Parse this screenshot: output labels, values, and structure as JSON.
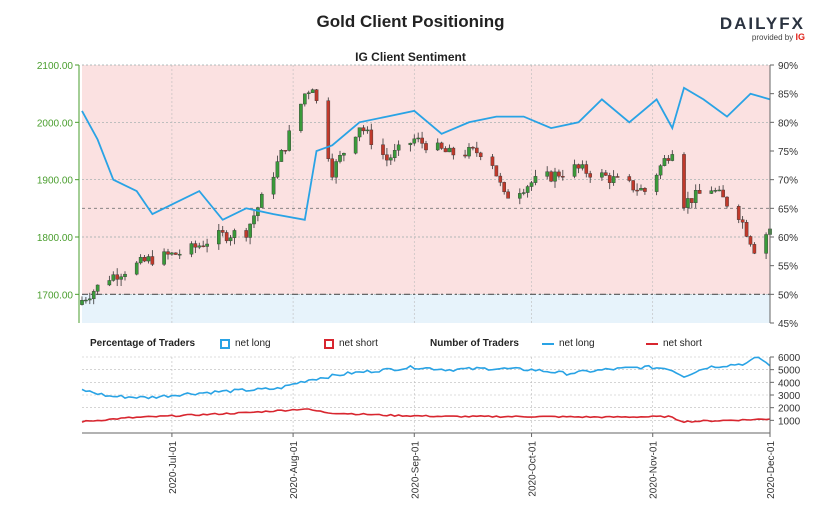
{
  "header": {
    "title": "Gold Client Positioning",
    "subtitle": "IG Client Sentiment",
    "brand_main": "DAILYFX",
    "brand_sub": "provided by",
    "brand_ig": "IG"
  },
  "legend": {
    "pct_label": "Percentage of Traders",
    "pct_long": "net long",
    "pct_short": "net short",
    "num_label": "Number of Traders",
    "num_long": "net long",
    "num_short": "net short"
  },
  "colors": {
    "long": "#29a3e5",
    "short": "#d8262f",
    "up_candle": "#3a9a3a",
    "down_candle": "#c0392b",
    "axis_green": "#4a9e2e",
    "zone_short": "#fbe1e1",
    "zone_long": "#e7f3fb"
  },
  "chart_data": [
    {
      "type": "candlestick",
      "title": "IG Client Sentiment",
      "x_ticks": [
        "2020-Jul-01",
        "2020-Aug-01",
        "2020-Sep-01",
        "2020-Oct-01",
        "2020-Nov-01",
        "2020-Dec-01"
      ],
      "x_range": [
        "2020-06-08",
        "2020-12-01"
      ],
      "y_ticks": [
        "1700.00",
        "1800.00",
        "1900.00",
        "2000.00",
        "2100.00"
      ],
      "ylim": [
        1650,
        2100
      ],
      "y2_ticks": [
        "45%",
        "50%",
        "55%",
        "60%",
        "65%",
        "70%",
        "75%",
        "80%",
        "85%",
        "90%"
      ],
      "y2lim": [
        45,
        90
      ],
      "reference_lines_pct": [
        50,
        65
      ],
      "grid": true,
      "gold_price_key_closes": [
        {
          "date": "2020-06-08",
          "close": 1690
        },
        {
          "date": "2020-06-15",
          "close": 1730
        },
        {
          "date": "2020-06-25",
          "close": 1760
        },
        {
          "date": "2020-07-05",
          "close": 1775
        },
        {
          "date": "2020-07-12",
          "close": 1800
        },
        {
          "date": "2020-07-20",
          "close": 1810
        },
        {
          "date": "2020-07-25",
          "close": 1880
        },
        {
          "date": "2020-07-30",
          "close": 1960
        },
        {
          "date": "2020-08-04",
          "close": 2050
        },
        {
          "date": "2020-08-06",
          "close": 2065
        },
        {
          "date": "2020-08-11",
          "close": 1915
        },
        {
          "date": "2020-08-18",
          "close": 1995
        },
        {
          "date": "2020-08-25",
          "close": 1935
        },
        {
          "date": "2020-09-01",
          "close": 1970
        },
        {
          "date": "2020-09-10",
          "close": 1945
        },
        {
          "date": "2020-09-20",
          "close": 1950
        },
        {
          "date": "2020-09-24",
          "close": 1870
        },
        {
          "date": "2020-10-01",
          "close": 1895
        },
        {
          "date": "2020-10-12",
          "close": 1920
        },
        {
          "date": "2020-10-20",
          "close": 1905
        },
        {
          "date": "2020-10-30",
          "close": 1880
        },
        {
          "date": "2020-11-06",
          "close": 1955
        },
        {
          "date": "2020-11-09",
          "close": 1860
        },
        {
          "date": "2020-11-16",
          "close": 1885
        },
        {
          "date": "2020-11-23",
          "close": 1840
        },
        {
          "date": "2020-11-27",
          "close": 1780
        },
        {
          "date": "2020-12-01",
          "close": 1815
        }
      ],
      "series": [
        {
          "name": "net long",
          "values_pct": [
            {
              "date": "2020-06-08",
              "y": 82
            },
            {
              "date": "2020-06-12",
              "y": 77
            },
            {
              "date": "2020-06-16",
              "y": 70
            },
            {
              "date": "2020-06-22",
              "y": 68
            },
            {
              "date": "2020-06-26",
              "y": 64
            },
            {
              "date": "2020-07-02",
              "y": 66
            },
            {
              "date": "2020-07-08",
              "y": 68
            },
            {
              "date": "2020-07-14",
              "y": 63
            },
            {
              "date": "2020-07-20",
              "y": 65
            },
            {
              "date": "2020-07-27",
              "y": 64
            },
            {
              "date": "2020-08-04",
              "y": 63
            },
            {
              "date": "2020-08-07",
              "y": 75
            },
            {
              "date": "2020-08-11",
              "y": 76
            },
            {
              "date": "2020-08-18",
              "y": 80
            },
            {
              "date": "2020-08-25",
              "y": 81
            },
            {
              "date": "2020-09-01",
              "y": 82
            },
            {
              "date": "2020-09-08",
              "y": 78
            },
            {
              "date": "2020-09-15",
              "y": 80
            },
            {
              "date": "2020-09-22",
              "y": 81
            },
            {
              "date": "2020-09-29",
              "y": 81
            },
            {
              "date": "2020-10-06",
              "y": 79
            },
            {
              "date": "2020-10-13",
              "y": 80
            },
            {
              "date": "2020-10-19",
              "y": 84
            },
            {
              "date": "2020-10-26",
              "y": 80
            },
            {
              "date": "2020-11-02",
              "y": 84
            },
            {
              "date": "2020-11-06",
              "y": 79
            },
            {
              "date": "2020-11-09",
              "y": 86
            },
            {
              "date": "2020-11-14",
              "y": 84
            },
            {
              "date": "2020-11-20",
              "y": 81
            },
            {
              "date": "2020-11-26",
              "y": 85
            },
            {
              "date": "2020-12-01",
              "y": 84
            }
          ]
        }
      ]
    },
    {
      "type": "line",
      "title": "Number of Traders",
      "x_ticks": [
        "2020-Jul-01",
        "2020-Aug-01",
        "2020-Sep-01",
        "2020-Oct-01",
        "2020-Nov-01",
        "2020-Dec-01"
      ],
      "y_ticks": [
        "1000",
        "2000",
        "3000",
        "4000",
        "5000",
        "6000"
      ],
      "ylim": [
        0,
        6000
      ],
      "series": [
        {
          "name": "net long",
          "values": [
            {
              "date": "2020-06-08",
              "y": 3400
            },
            {
              "date": "2020-06-15",
              "y": 2900
            },
            {
              "date": "2020-06-25",
              "y": 2800
            },
            {
              "date": "2020-07-05",
              "y": 3100
            },
            {
              "date": "2020-07-15",
              "y": 3300
            },
            {
              "date": "2020-07-28",
              "y": 3500
            },
            {
              "date": "2020-08-05",
              "y": 4200
            },
            {
              "date": "2020-08-15",
              "y": 4700
            },
            {
              "date": "2020-08-25",
              "y": 5000
            },
            {
              "date": "2020-09-01",
              "y": 5200
            },
            {
              "date": "2020-09-10",
              "y": 5000
            },
            {
              "date": "2020-09-20",
              "y": 5100
            },
            {
              "date": "2020-10-01",
              "y": 5000
            },
            {
              "date": "2020-10-10",
              "y": 4700
            },
            {
              "date": "2020-10-20",
              "y": 5000
            },
            {
              "date": "2020-10-30",
              "y": 5200
            },
            {
              "date": "2020-11-05",
              "y": 5100
            },
            {
              "date": "2020-11-09",
              "y": 4500
            },
            {
              "date": "2020-11-15",
              "y": 5200
            },
            {
              "date": "2020-11-25",
              "y": 5500
            },
            {
              "date": "2020-11-28",
              "y": 6000
            },
            {
              "date": "2020-12-01",
              "y": 5300
            }
          ]
        },
        {
          "name": "net short",
          "values": [
            {
              "date": "2020-06-08",
              "y": 900
            },
            {
              "date": "2020-06-20",
              "y": 1200
            },
            {
              "date": "2020-07-05",
              "y": 1400
            },
            {
              "date": "2020-07-20",
              "y": 1600
            },
            {
              "date": "2020-08-04",
              "y": 1900
            },
            {
              "date": "2020-08-10",
              "y": 1600
            },
            {
              "date": "2020-08-25",
              "y": 1400
            },
            {
              "date": "2020-09-10",
              "y": 1300
            },
            {
              "date": "2020-10-01",
              "y": 1300
            },
            {
              "date": "2020-10-20",
              "y": 1250
            },
            {
              "date": "2020-11-05",
              "y": 1300
            },
            {
              "date": "2020-11-09",
              "y": 900
            },
            {
              "date": "2020-11-20",
              "y": 1000
            },
            {
              "date": "2020-12-01",
              "y": 1100
            }
          ]
        }
      ]
    }
  ]
}
